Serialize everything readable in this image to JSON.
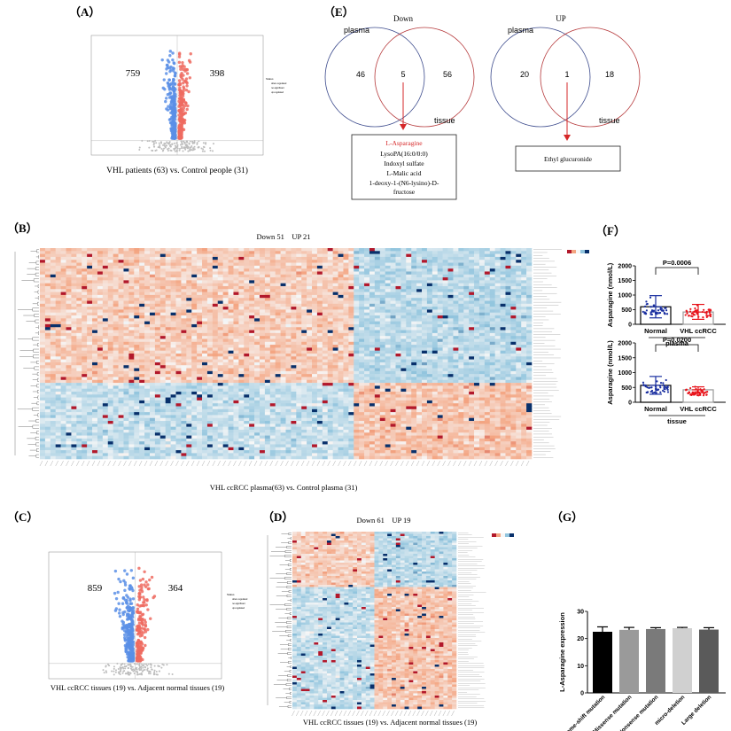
{
  "panels": {
    "A": {
      "label": "（A）",
      "caption": "VHL patients (63) vs. Control people (31)",
      "down_count": "759",
      "up_count": "398",
      "legend_title": "Status",
      "legend_items": [
        "down-regulated",
        "no-significant",
        "up-regulated"
      ],
      "colors": {
        "down": "#5b8fe6",
        "none": "#bdbdbd",
        "up": "#ee6b60"
      }
    },
    "B": {
      "label": "（B）",
      "title": "Down 51    UP 21",
      "caption": "VHL ccRCC plasma(63) vs. Control plasma (31)",
      "color_scale": [
        "#b2182b",
        "#f4a582",
        "#f7f7f7",
        "#92c5de",
        "#08306b"
      ]
    },
    "C": {
      "label": "（C）",
      "caption": "VHL ccRCC tissues (19) vs. Adjacent normal tissues (19)",
      "down_count": "859",
      "up_count": "364",
      "legend_title": "Status",
      "legend_items": [
        "down-regulated",
        "no-significant",
        "up-regulated"
      ]
    },
    "D": {
      "label": "（D）",
      "title": "Down 61    UP 19",
      "caption": "VHL ccRCC tissues (19) vs. Adjacent normal tissues (19)"
    },
    "E": {
      "label": "（E）",
      "down": {
        "title": "Down",
        "set1": "plasma",
        "set2": "tissue",
        "only1": "46",
        "both": "5",
        "only2": "56",
        "metabolites": [
          "L-Asparagine",
          "LysoPA(16:0/0:0)",
          "Indoxyl sulfate",
          "L-Malic acid",
          "1-deoxy-1-(N6-lysino)-D-",
          "fructose"
        ],
        "highlight_color": "#d62728"
      },
      "up": {
        "title": "UP",
        "set1": "plasma",
        "set2": "tissue",
        "only1": "20",
        "both": "1",
        "only2": "18",
        "metabolites": [
          "Ethyl glucuronide"
        ]
      },
      "colors": {
        "plasma": "#3b4a8c",
        "tissue": "#b5383a"
      }
    },
    "F": {
      "label": "（F）"
    },
    "G": {
      "label": "（G）"
    }
  },
  "chart_data": [
    {
      "type": "bar",
      "panel": "F-plasma",
      "categories": [
        "Normal",
        "VHL ccRCC"
      ],
      "values": [
        600,
        420
      ],
      "error_upper": [
        980,
        680
      ],
      "error_lower": [
        220,
        170
      ],
      "ylabel": "Asparagine (nmol/L)",
      "xlabel": "plasma",
      "ylim": [
        0,
        2000
      ],
      "yticks": [
        "0",
        "500",
        "1000",
        "1500",
        "2000"
      ],
      "annotation": "P=0.0006",
      "colors": [
        "#1a2fa0",
        "#e8141b"
      ]
    },
    {
      "type": "bar",
      "panel": "F-tissue",
      "categories": [
        "Normal",
        "VHL ccRCC"
      ],
      "values": [
        570,
        420
      ],
      "error_upper": [
        870,
        520
      ],
      "error_lower": [
        270,
        320
      ],
      "ylabel": "Asparagine (nmol/L)",
      "xlabel": "tissue",
      "ylim": [
        0,
        2000
      ],
      "yticks": [
        "0",
        "500",
        "1000",
        "1500",
        "2000"
      ],
      "annotation": "P=0.0200",
      "colors": [
        "#1a2fa0",
        "#e8141b"
      ]
    },
    {
      "type": "bar",
      "panel": "G",
      "categories": [
        "Frame-shift mutation",
        "Missense mutation",
        "Nonsense mutation",
        "micro-deletion",
        "Large deletion"
      ],
      "values": [
        22.5,
        23.2,
        23.5,
        23.8,
        23.3
      ],
      "errors": [
        1.8,
        0.9,
        0.5,
        0.3,
        0.7
      ],
      "ylabel": "L-Asparagine expression",
      "ylim": [
        0,
        30
      ],
      "yticks": [
        "0",
        "10",
        "20",
        "30"
      ],
      "colors": [
        "#000000",
        "#9a9a9a",
        "#7a7a7a",
        "#d0d0d0",
        "#5a5a5a"
      ]
    }
  ]
}
